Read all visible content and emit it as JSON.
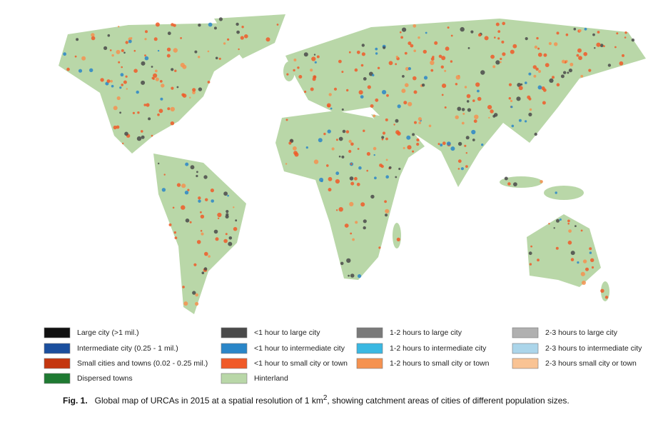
{
  "legend": {
    "columns": [
      [
        {
          "label": "Large city (>1 mil.)",
          "color": "#111111"
        },
        {
          "label": "Intermediate city (0.25 - 1 mil.)",
          "color": "#1b4f9e"
        },
        {
          "label": "Small cities and towns (0.02 - 0.25 mil.)",
          "color": "#c4360f"
        },
        {
          "label": "Dispersed towns",
          "color": "#1f7a32"
        }
      ],
      [
        {
          "label": "<1 hour to large city",
          "color": "#4a4a4a"
        },
        {
          "label": "<1 hour to intermediate city",
          "color": "#2a86c8"
        },
        {
          "label": "<1 hour to small city or town",
          "color": "#f05a28"
        },
        {
          "label": "Hinterland",
          "color": "#b9d7a8"
        }
      ],
      [
        {
          "label": "1-2 hours to large city",
          "color": "#7a7a7a"
        },
        {
          "label": "1-2 hours to intermediate city",
          "color": "#3ab8e2"
        },
        {
          "label": "1-2 hours to small city or town",
          "color": "#f59250"
        }
      ],
      [
        {
          "label": "2-3 hours to large city",
          "color": "#b0b0b0"
        },
        {
          "label": "2-3 hours to intermediate city",
          "color": "#abd5ea"
        },
        {
          "label": "2-3 hours small city or town",
          "color": "#f9c394"
        }
      ]
    ]
  },
  "caption": {
    "label": "Fig. 1.",
    "text": "Global map of URCAs in 2015 at a spatial resolution of 1 km",
    "superscript": "2",
    "text_end": ", showing catchment areas of cities of different population sizes."
  }
}
